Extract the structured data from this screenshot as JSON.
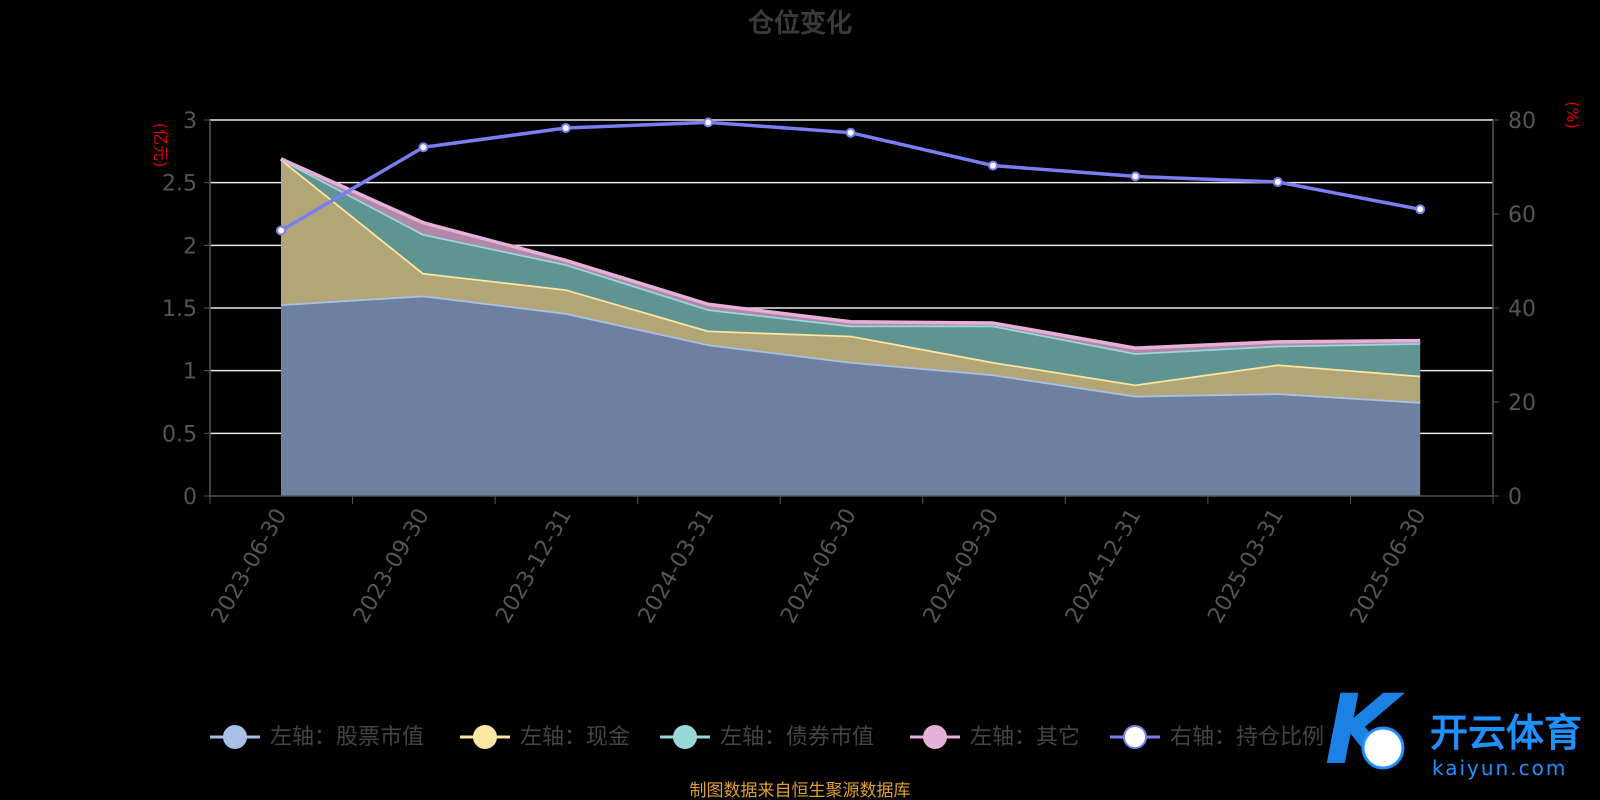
{
  "chart_data": {
    "type": "area",
    "title": "仓位变化",
    "categories": [
      "2023-06-30",
      "2023-09-30",
      "2023-12-31",
      "2024-03-31",
      "2024-06-30",
      "2024-09-30",
      "2024-12-31",
      "2025-03-31",
      "2025-06-30"
    ],
    "left_axis": {
      "unit": "(亿元)",
      "ylim": [
        0,
        3
      ],
      "ticks": [
        "0",
        "0.5",
        "1",
        "1.5",
        "2",
        "2.5",
        "3"
      ],
      "tick_values": [
        0,
        0.5,
        1,
        1.5,
        2,
        2.5,
        3
      ]
    },
    "right_axis": {
      "unit": "(%)",
      "ylim": [
        0,
        80
      ],
      "ticks": [
        "0",
        "20",
        "40",
        "60",
        "80"
      ],
      "tick_values": [
        0,
        20,
        40,
        60,
        80
      ]
    },
    "stacked_series": [
      {
        "name": "左轴：股票市值",
        "values": [
          1.53,
          1.6,
          1.46,
          1.21,
          1.07,
          0.97,
          0.8,
          0.82,
          0.75
        ],
        "color": "#a8c0e8",
        "fill": "#6e80a0"
      },
      {
        "name": "左轴：现金",
        "values": [
          1.16,
          0.18,
          0.19,
          0.11,
          0.21,
          0.1,
          0.09,
          0.23,
          0.21
        ],
        "color": "#fbe6a2",
        "fill": "#b3a676"
      },
      {
        "name": "左轴：债券市值",
        "values": [
          0.0,
          0.31,
          0.2,
          0.17,
          0.08,
          0.29,
          0.25,
          0.15,
          0.26
        ],
        "color": "#98d8d8",
        "fill": "#5f9490"
      },
      {
        "name": "左轴：其它",
        "values": [
          0.0,
          0.09,
          0.03,
          0.04,
          0.03,
          0.02,
          0.04,
          0.03,
          0.02
        ],
        "color": "#e6b0d8",
        "fill": "#b088a8"
      }
    ],
    "line_series": [
      {
        "name": "右轴：持仓比例",
        "axis": "right",
        "values": [
          56.5,
          74.2,
          78.3,
          79.5,
          77.3,
          70.3,
          68.0,
          66.8,
          61.0
        ],
        "color": "#7b7ef2"
      }
    ],
    "grid": true,
    "legend_position": "bottom"
  },
  "source_text": "制图数据来自恒生聚源数据库",
  "watermark": {
    "name": "开云体育",
    "sub": "kaiyun.com",
    "logo": "K"
  }
}
